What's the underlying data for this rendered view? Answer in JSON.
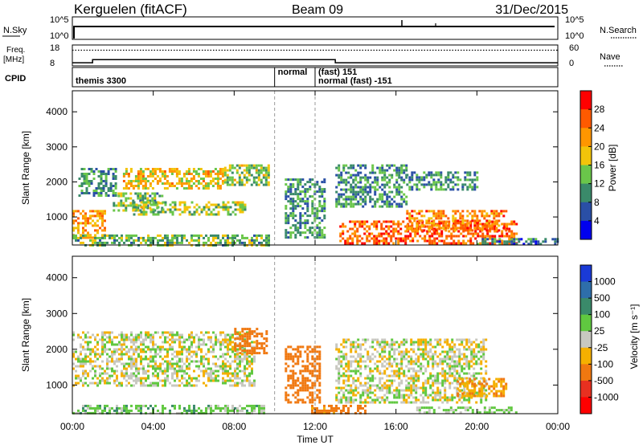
{
  "header": {
    "station": "Kerguelen (fitACF)",
    "beam": "Beam 09",
    "date": "31/Dec/2015"
  },
  "nsky_panel": {
    "left_label": "N.Sky",
    "right_label": "N.Search",
    "left_ticks": [
      "10^5",
      "10^0"
    ],
    "right_ticks": [
      "10^5",
      "10^0"
    ]
  },
  "freq_panel": {
    "left_label_line1": "Freq.",
    "left_label_line2": "[MHz]",
    "right_label": "Nave",
    "left_ticks": [
      "18",
      "8"
    ],
    "right_ticks": [
      "60",
      "0"
    ],
    "freq_steps_mhz": [
      [
        0,
        9.5
      ],
      [
        1.0,
        11.0
      ],
      [
        13.0,
        9.5
      ],
      [
        24.0,
        9.5
      ]
    ],
    "nave_dotted": 45
  },
  "cpid_panel": {
    "label": "CPID",
    "entries": [
      {
        "time_h": 0.0,
        "text": "themis 3300"
      },
      {
        "time_h": 10.0,
        "text": "normal"
      },
      {
        "time_h": 12.0,
        "text": "(fast) 151"
      },
      {
        "time_h": 12.0,
        "text": "normal (fast) -151"
      }
    ]
  },
  "power_panel": {
    "ylabel": "Slant Range [km]",
    "colorbar_label": "Power [dB]",
    "colorbar_ticks": [
      "28",
      "24",
      "20",
      "16",
      "12",
      "8",
      "4"
    ],
    "colorbar_colors": [
      "#ff0000",
      "#ff5a00",
      "#ff9600",
      "#f2c40a",
      "#6ac64a",
      "#3a8a6a",
      "#2a4fa6",
      "#0000ee"
    ]
  },
  "velocity_panel": {
    "ylabel": "Slant Range [km]",
    "colorbar_label": "Velocity [m s⁻¹]",
    "colorbar_ticks": [
      "1000",
      "500",
      "100",
      "25",
      "-25",
      "-100",
      "-500",
      "-1000"
    ],
    "colorbar_colors": [
      "#1a3ad6",
      "#2e6eaa",
      "#3a8a6a",
      "#60c840",
      "#c8c8c0",
      "#f5b000",
      "#f07810",
      "#e83020",
      "#ff0000"
    ]
  },
  "yticks_range": [
    "1000",
    "2000",
    "3000",
    "4000"
  ],
  "xticks": [
    "00:00",
    "04:00",
    "08:00",
    "12:00",
    "16:00",
    "20:00",
    "00:00"
  ],
  "xlabel": "Time UT",
  "chart_data": {
    "type": "heatmap",
    "title": "Kerguelen (fitACF)",
    "x_range_hours": [
      0,
      24
    ],
    "y_range_km": [
      200,
      4600
    ],
    "xlabel": "Time UT",
    "ylabel": "Slant Range [km]",
    "power_range_db": [
      0,
      30
    ],
    "velocity_range_ms": [
      -1000,
      1000
    ],
    "power_bands": [
      {
        "t0": 0.0,
        "t1": 1.6,
        "r0": 400,
        "r1": 1200,
        "power": 20
      },
      {
        "t0": 0.3,
        "t1": 2.2,
        "r0": 1600,
        "r1": 2400,
        "power": 10
      },
      {
        "t0": 2.0,
        "t1": 4.5,
        "r0": 1200,
        "r1": 1700,
        "power": 12
      },
      {
        "t0": 2.5,
        "t1": 7.5,
        "r0": 1800,
        "r1": 2400,
        "power": 18
      },
      {
        "t0": 3.0,
        "t1": 8.5,
        "r0": 1100,
        "r1": 1450,
        "power": 14
      },
      {
        "t0": 7.5,
        "t1": 9.7,
        "r0": 1900,
        "r1": 2500,
        "power": 14
      },
      {
        "t0": 0.0,
        "t1": 9.7,
        "r0": 200,
        "r1": 500,
        "power": 12
      },
      {
        "t0": 10.5,
        "t1": 12.5,
        "r0": 400,
        "r1": 2100,
        "power": 10
      },
      {
        "t0": 13.0,
        "t1": 16.5,
        "r0": 1300,
        "r1": 2500,
        "power": 10
      },
      {
        "t0": 13.2,
        "t1": 22.0,
        "r0": 250,
        "r1": 900,
        "power": 24
      },
      {
        "t0": 16.5,
        "t1": 21.5,
        "r0": 600,
        "r1": 1200,
        "power": 22
      },
      {
        "t0": 16.5,
        "t1": 20.0,
        "r0": 1800,
        "r1": 2300,
        "power": 10
      },
      {
        "t0": 20.0,
        "t1": 24.0,
        "r0": 200,
        "r1": 400,
        "power": 8
      }
    ],
    "velocity_bands": [
      {
        "t0": 0.0,
        "t1": 9.0,
        "r0": 1000,
        "r1": 2500,
        "velocity": 0
      },
      {
        "t0": 0.0,
        "t1": 9.5,
        "r0": 200,
        "r1": 450,
        "velocity": 60
      },
      {
        "t0": 8.0,
        "t1": 9.6,
        "r0": 1900,
        "r1": 2600,
        "velocity": -300
      },
      {
        "t0": 10.5,
        "t1": 12.2,
        "r0": 500,
        "r1": 2100,
        "velocity": -400
      },
      {
        "t0": 11.8,
        "t1": 14.5,
        "r0": 200,
        "r1": 450,
        "velocity": -150
      },
      {
        "t0": 13.0,
        "t1": 20.5,
        "r0": 500,
        "r1": 2300,
        "velocity": 0
      },
      {
        "t0": 19.0,
        "t1": 21.5,
        "r0": 700,
        "r1": 1200,
        "velocity": -80
      },
      {
        "t0": 17.0,
        "t1": 22.0,
        "r0": 200,
        "r1": 400,
        "velocity": 40
      }
    ]
  }
}
